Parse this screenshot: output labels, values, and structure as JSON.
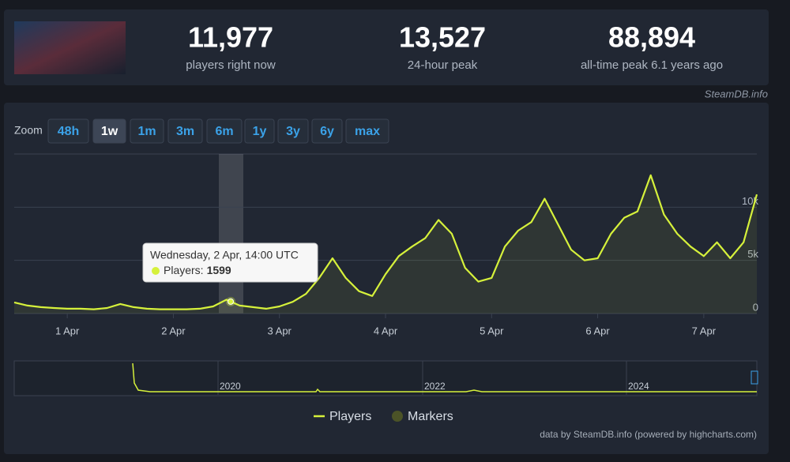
{
  "header": {
    "stats": [
      {
        "value": "11,977",
        "label": "players right now"
      },
      {
        "value": "13,527",
        "label": "24-hour peak"
      },
      {
        "value": "88,894",
        "label": "all-time peak 6.1 years ago"
      }
    ],
    "credit": "SteamDB.info"
  },
  "zoom": {
    "label": "Zoom",
    "options": [
      "48h",
      "1w",
      "1m",
      "3m",
      "6m",
      "1y",
      "3y",
      "6y",
      "max"
    ],
    "active": "1w"
  },
  "chart_data": {
    "type": "line",
    "categories": [
      null,
      null,
      null,
      null,
      "1 Apr",
      null,
      null,
      null,
      null,
      null,
      null,
      null,
      "2 Apr",
      null,
      null,
      null,
      null,
      null,
      null,
      null,
      "3 Apr",
      null,
      null,
      null,
      null,
      null,
      null,
      null,
      "4 Apr",
      null,
      null,
      null,
      null,
      null,
      null,
      null,
      "5 Apr",
      null,
      null,
      null,
      null,
      null,
      null,
      null,
      "6 Apr",
      null,
      null,
      null,
      null,
      null,
      null,
      null,
      "7 Apr",
      null,
      null,
      null,
      null
    ],
    "series": [
      {
        "name": "Players",
        "color": "#d6f13b",
        "values": [
          1050,
          750,
          600,
          520,
          450,
          450,
          400,
          520,
          900,
          600,
          450,
          400,
          400,
          400,
          450,
          670,
          1300,
          750,
          600,
          450,
          670,
          1100,
          1850,
          3350,
          5200,
          3350,
          2100,
          1650,
          3700,
          5400,
          6300,
          7100,
          8800,
          7500,
          4300,
          3000,
          3350,
          6300,
          7800,
          8600,
          10800,
          8400,
          6000,
          5000,
          5200,
          7500,
          9000,
          9600,
          13000,
          9300,
          7500,
          6300,
          5400,
          6700,
          5200,
          6700,
          11200
        ]
      }
    ],
    "markers": {
      "name": "Markers",
      "color": "#4b5327"
    },
    "ylim": [
      0,
      15000
    ],
    "yticks": [
      0,
      {
        "value": 5000,
        "label": "5k"
      },
      {
        "value": 10000,
        "label": "10k"
      }
    ],
    "grid": true
  },
  "tooltip": {
    "title": "Wednesday, 2 Apr, 14:00 UTC",
    "label": "Players:",
    "value": 1599
  },
  "navigator": {
    "labels": [
      "2020",
      "2022",
      "2024"
    ]
  },
  "footer": "data by SteamDB.info (powered by highcharts.com)"
}
